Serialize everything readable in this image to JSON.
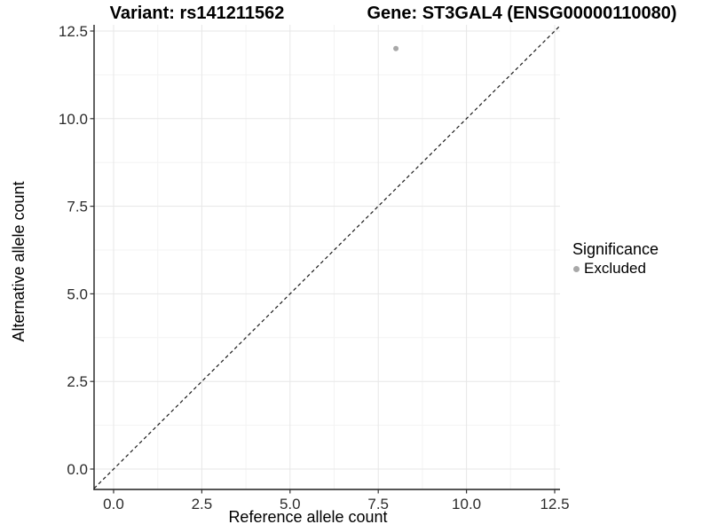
{
  "header": {
    "title_left": "Variant: rs141211562",
    "title_right": "Gene: ST3GAL4 (ENSG00000110080)"
  },
  "chart_data": {
    "type": "scatter",
    "xlabel": "Reference allele count",
    "ylabel": "Alternative allele count",
    "xlim": [
      -0.55,
      12.65
    ],
    "ylim": [
      -0.58,
      12.68
    ],
    "x_ticks": [
      0,
      2.5,
      5,
      7.5,
      10,
      12.5
    ],
    "x_tick_labels": [
      "0.0",
      "2.5",
      "5.0",
      "7.5",
      "10.0",
      "12.5"
    ],
    "y_ticks": [
      0,
      2.5,
      5,
      7.5,
      10,
      12.5
    ],
    "y_tick_labels": [
      "0.0",
      "2.5",
      "5.0",
      "7.5",
      "10.0",
      "12.5"
    ],
    "x_minor_ticks": [
      1.25,
      3.75,
      6.25,
      8.75,
      11.25
    ],
    "y_minor_ticks": [
      1.25,
      3.75,
      6.25,
      8.75,
      11.25
    ],
    "grid": "major+minor",
    "series": [
      {
        "name": "Excluded",
        "marker": "circle",
        "color": "#a8a8a8",
        "points": [
          [
            8,
            12
          ]
        ]
      }
    ],
    "reference_line": {
      "equation": "y = x",
      "style": "dashed",
      "color": "#1a1a1a"
    },
    "legend": {
      "position": "right",
      "title": "Significance",
      "items": [
        {
          "label": "Excluded",
          "color": "#a8a8a8",
          "marker": "circle"
        }
      ]
    }
  },
  "colors": {
    "background": "#ffffff",
    "grid_major": "#e7e7e7",
    "grid_minor": "#f3f3f3",
    "axis_line": "#1f1f1f",
    "tick_mark": "#333333",
    "tick_label": "#2b2b2b"
  }
}
